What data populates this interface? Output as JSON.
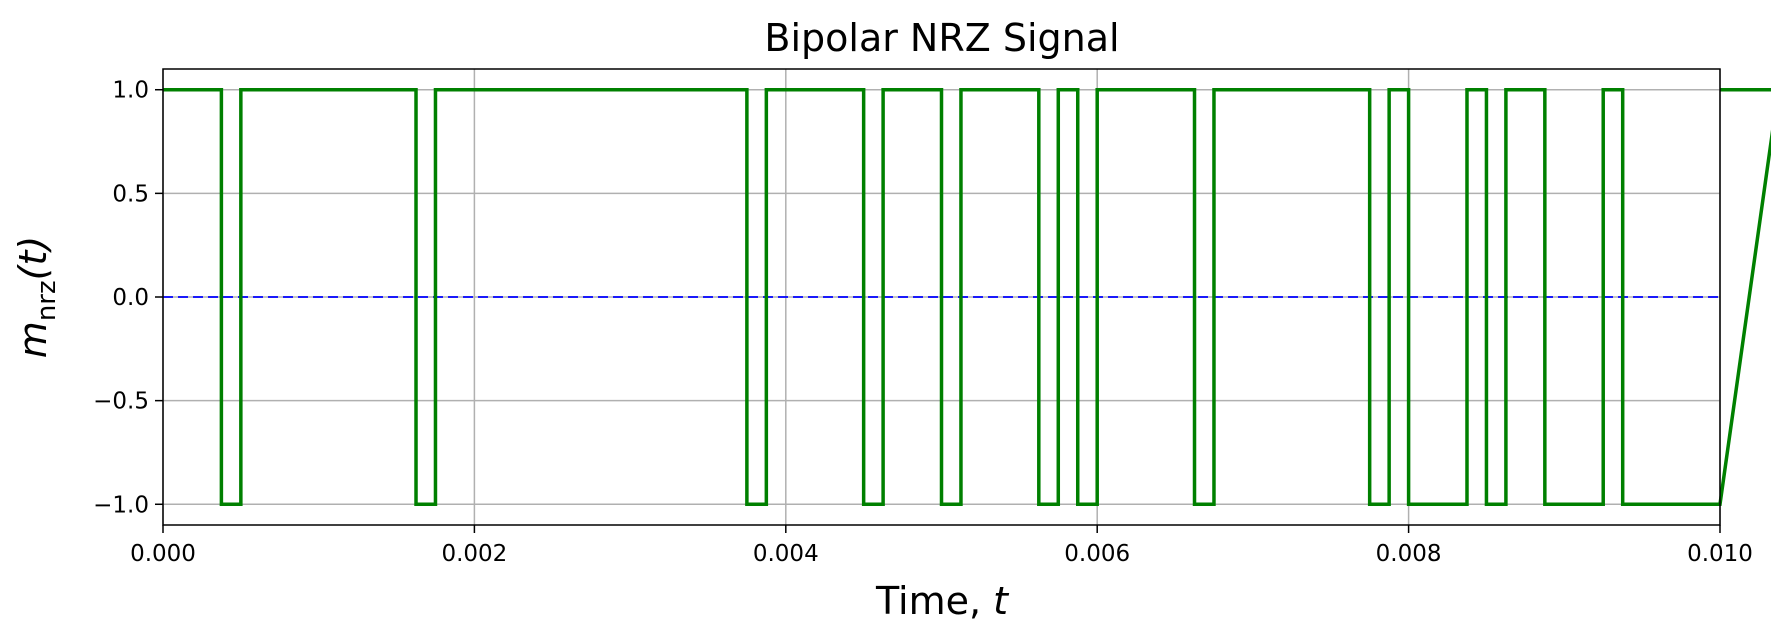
{
  "chart_data": {
    "type": "line",
    "title": "Bipolar NRZ Signal",
    "xlabel": "Time, t",
    "xlabel_text": "Time, ",
    "xlabel_var": "t",
    "ylabel": "m_nrz(t)",
    "ylabel_var": "m",
    "ylabel_sub": "nrz",
    "ylabel_arg": "(t)",
    "xlim": [
      0,
      0.01
    ],
    "ylim": [
      -1.1,
      1.1
    ],
    "xticks": [
      0,
      0.002,
      0.004,
      0.006,
      0.008,
      0.01
    ],
    "xtick_labels": [
      "0.000",
      "0.002",
      "0.004",
      "0.006",
      "0.008",
      "0.010"
    ],
    "yticks": [
      -1.0,
      -0.5,
      0.0,
      0.5,
      1.0
    ],
    "ytick_labels": [
      "−1.0",
      "−0.5",
      "0.0",
      "0.5",
      "1.0"
    ],
    "grid": true,
    "bit_duration": 0.000125,
    "series": [
      {
        "style": "step",
        "color": "#008000",
        "bits": [
          1,
          1,
          1,
          -1,
          1,
          1,
          1,
          1,
          1,
          1,
          1,
          1,
          1,
          -1,
          1,
          1,
          1,
          1,
          1,
          1,
          1,
          1,
          1,
          1,
          1,
          1,
          1,
          1,
          1,
          1,
          -1,
          1,
          1,
          1,
          1,
          1,
          -1,
          1,
          1,
          1,
          -1,
          1,
          1,
          1,
          1,
          -1,
          1,
          -1,
          1,
          1,
          1,
          1,
          1,
          -1,
          1,
          1,
          1,
          1,
          1,
          1,
          1,
          1,
          -1,
          1,
          -1,
          -1,
          -1,
          1,
          -1,
          1,
          1,
          -1,
          -1,
          -1,
          1,
          -1,
          -1,
          -1,
          -1,
          -1,
          -1,
          -1,
          -1,
          1
        ]
      },
      {
        "style": "dashed",
        "color": "#0000ff",
        "x": [
          0,
          0.01
        ],
        "y": [
          0,
          0
        ]
      }
    ]
  }
}
